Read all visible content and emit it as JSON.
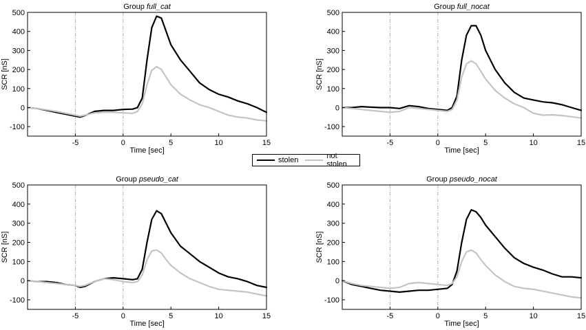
{
  "chart_data": [
    {
      "type": "line",
      "title_prefix": "Group ",
      "title_group": "full_cat",
      "xlabel": "Time [sec]",
      "ylabel": "SCR [nS]",
      "xlim": [
        -10,
        15
      ],
      "ylim": [
        -150,
        500
      ],
      "xticks": [
        -5,
        0,
        5,
        10,
        15
      ],
      "yticks": [
        -100,
        0,
        100,
        200,
        300,
        400,
        500
      ],
      "vlines": [
        -5,
        0
      ],
      "series": [
        {
          "name": "stolen",
          "color": "#000000",
          "x": [
            -10,
            -9,
            -8,
            -7,
            -6,
            -5,
            -4.5,
            -4,
            -3,
            -2,
            -1,
            0,
            1,
            1.5,
            2,
            2.5,
            3,
            3.5,
            4,
            4.5,
            5,
            6,
            7,
            8,
            9,
            10,
            11,
            12,
            13,
            14,
            15
          ],
          "y": [
            0,
            -5,
            -15,
            -25,
            -35,
            -45,
            -50,
            -42,
            -20,
            -15,
            -15,
            -10,
            -8,
            0,
            50,
            250,
            420,
            480,
            470,
            400,
            330,
            250,
            190,
            130,
            95,
            70,
            55,
            35,
            20,
            0,
            -25
          ]
        },
        {
          "name": "not stolen",
          "color": "#c4c4c4",
          "x": [
            -10,
            -9,
            -8,
            -7,
            -6,
            -5,
            -4.5,
            -4,
            -3,
            -2,
            -1,
            0,
            1,
            1.5,
            2,
            2.5,
            3,
            3.5,
            4,
            4.5,
            5,
            6,
            7,
            8,
            9,
            10,
            11,
            12,
            13,
            14,
            15
          ],
          "y": [
            0,
            -5,
            -12,
            -20,
            -30,
            -40,
            -45,
            -40,
            -28,
            -25,
            -25,
            -28,
            -30,
            -20,
            20,
            120,
            195,
            215,
            200,
            160,
            120,
            70,
            40,
            15,
            0,
            -20,
            -40,
            -50,
            -55,
            -65,
            -70
          ]
        }
      ]
    },
    {
      "type": "line",
      "title_prefix": "Group ",
      "title_group": "full_nocat",
      "xlabel": "Time [sec]",
      "ylabel": "SCR [nS]",
      "xlim": [
        -10,
        15
      ],
      "ylim": [
        -150,
        500
      ],
      "xticks": [
        -5,
        0,
        5,
        10,
        15
      ],
      "yticks": [
        -100,
        0,
        100,
        200,
        300,
        400,
        500
      ],
      "vlines": [
        -5,
        0
      ],
      "series": [
        {
          "name": "stolen",
          "color": "#000000",
          "x": [
            -10,
            -9,
            -8,
            -7,
            -6,
            -5,
            -4,
            -3,
            -2,
            -1,
            0,
            1,
            1.5,
            2,
            2.5,
            3,
            3.5,
            4,
            4.5,
            5,
            6,
            7,
            8,
            9,
            10,
            11,
            12,
            13,
            14,
            15
          ],
          "y": [
            0,
            0,
            5,
            2,
            0,
            0,
            -5,
            10,
            5,
            -5,
            -10,
            -15,
            0,
            60,
            250,
            380,
            430,
            430,
            380,
            300,
            200,
            130,
            80,
            50,
            40,
            30,
            25,
            15,
            0,
            -15
          ]
        },
        {
          "name": "not stolen",
          "color": "#c4c4c4",
          "x": [
            -10,
            -9,
            -8,
            -7,
            -6,
            -5,
            -4,
            -3,
            -2,
            -1,
            0,
            1,
            1.5,
            2,
            2.5,
            3,
            3.5,
            4,
            4.5,
            5,
            6,
            7,
            8,
            9,
            10,
            11,
            12,
            13,
            14,
            15
          ],
          "y": [
            0,
            -5,
            -10,
            -15,
            -20,
            -25,
            -20,
            0,
            -5,
            -10,
            -15,
            -20,
            -10,
            40,
            160,
            230,
            245,
            230,
            190,
            150,
            90,
            50,
            20,
            0,
            -30,
            -40,
            -38,
            -42,
            -48,
            -55
          ]
        }
      ]
    },
    {
      "type": "line",
      "title_prefix": "Group ",
      "title_group": "pseudo_cat",
      "xlabel": "Time [sec]",
      "ylabel": "SCR [nS]",
      "xlim": [
        -10,
        15
      ],
      "ylim": [
        -150,
        500
      ],
      "xticks": [
        -5,
        0,
        5,
        10,
        15
      ],
      "yticks": [
        -100,
        0,
        100,
        200,
        300,
        400,
        500
      ],
      "vlines": [
        -5,
        0
      ],
      "series": [
        {
          "name": "stolen",
          "color": "#000000",
          "x": [
            -10,
            -9,
            -8,
            -7,
            -6,
            -5,
            -4.5,
            -4,
            -3,
            -2,
            -1,
            0,
            1,
            1.5,
            2,
            2.5,
            3,
            3.5,
            4,
            4.5,
            5,
            6,
            7,
            8,
            9,
            10,
            11,
            12,
            13,
            14,
            15
          ],
          "y": [
            0,
            -5,
            -5,
            -10,
            -20,
            -25,
            -35,
            -30,
            -5,
            10,
            15,
            10,
            5,
            10,
            60,
            200,
            320,
            365,
            350,
            300,
            250,
            180,
            140,
            100,
            70,
            40,
            20,
            10,
            -5,
            -25,
            -35
          ]
        },
        {
          "name": "not stolen",
          "color": "#c4c4c4",
          "x": [
            -10,
            -9,
            -8,
            -7,
            -6,
            -5,
            -4.5,
            -4,
            -3,
            -2,
            -1,
            0,
            1,
            1.5,
            2,
            2.5,
            3,
            3.5,
            4,
            4.5,
            5,
            6,
            7,
            8,
            9,
            10,
            11,
            12,
            13,
            14,
            15
          ],
          "y": [
            0,
            -5,
            -10,
            -15,
            -20,
            -25,
            -30,
            -25,
            -5,
            10,
            5,
            -5,
            -10,
            -5,
            30,
            110,
            155,
            160,
            145,
            110,
            80,
            40,
            10,
            -10,
            -30,
            -45,
            -50,
            -55,
            -60,
            -70,
            -80
          ]
        }
      ]
    },
    {
      "type": "line",
      "title_prefix": "Group ",
      "title_group": "pseudo_nocat",
      "xlabel": "Time [sec]",
      "ylabel": "SCR [nS]",
      "xlim": [
        -10,
        15
      ],
      "ylim": [
        -150,
        500
      ],
      "xticks": [
        -5,
        0,
        5,
        10,
        15
      ],
      "yticks": [
        -100,
        0,
        100,
        200,
        300,
        400,
        500
      ],
      "vlines": [
        -5,
        0
      ],
      "series": [
        {
          "name": "stolen",
          "color": "#000000",
          "x": [
            -10,
            -9,
            -8,
            -7,
            -6,
            -5,
            -4,
            -3,
            -2,
            -1,
            0,
            1,
            1.5,
            2,
            2.5,
            3,
            3.5,
            4,
            4.5,
            5,
            6,
            7,
            8,
            9,
            10,
            11,
            12,
            13,
            14,
            15
          ],
          "y": [
            0,
            -20,
            -30,
            -40,
            -50,
            -55,
            -60,
            -55,
            -50,
            -50,
            -45,
            -40,
            -20,
            50,
            200,
            320,
            370,
            360,
            330,
            290,
            230,
            170,
            120,
            90,
            70,
            55,
            35,
            20,
            20,
            15
          ]
        },
        {
          "name": "not stolen",
          "color": "#c4c4c4",
          "x": [
            -10,
            -9,
            -8,
            -7,
            -6,
            -5,
            -4,
            -3,
            -2,
            -1,
            0,
            1,
            1.5,
            2,
            2.5,
            3,
            3.5,
            4,
            4.5,
            5,
            6,
            7,
            8,
            9,
            10,
            11,
            12,
            13,
            14,
            15
          ],
          "y": [
            0,
            -15,
            -25,
            -30,
            -35,
            -40,
            -35,
            -15,
            -10,
            -15,
            -20,
            -25,
            -15,
            20,
            100,
            150,
            160,
            145,
            110,
            80,
            30,
            -5,
            -30,
            -40,
            -45,
            -55,
            -65,
            -75,
            -85,
            -90
          ]
        }
      ]
    }
  ],
  "legend": {
    "items": [
      "stolen",
      "not stolen"
    ],
    "colors": [
      "#000000",
      "#c4c4c4"
    ]
  }
}
